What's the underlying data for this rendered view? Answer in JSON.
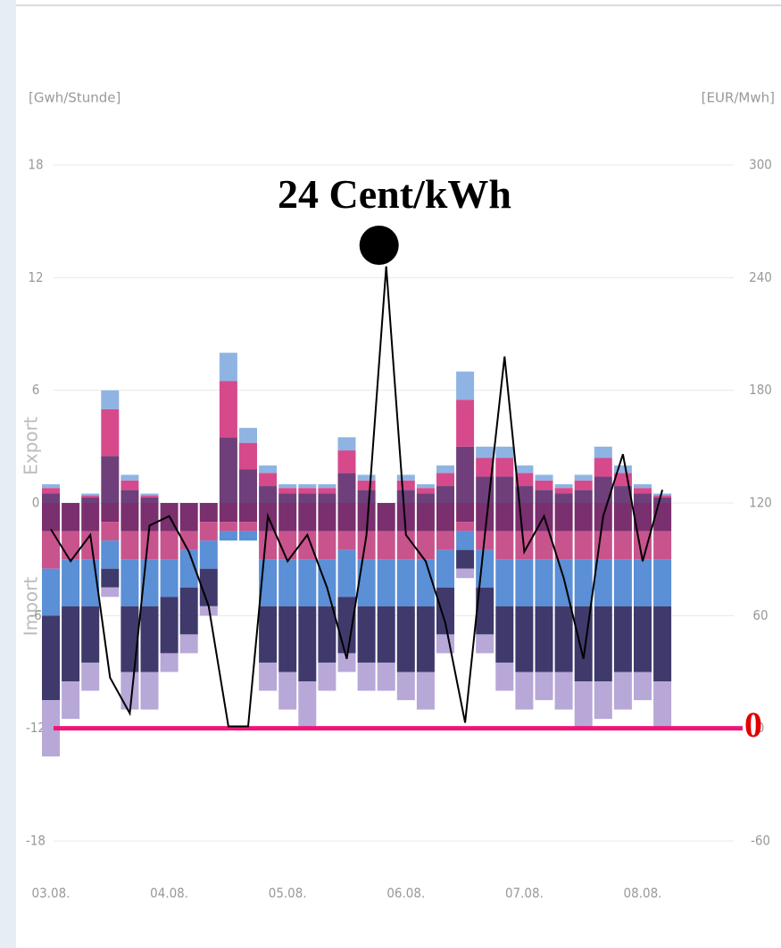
{
  "chart_data": {
    "type": "bar",
    "y_label": "[Gwh/Stunde]",
    "y2_label": "[EUR/Mwh]",
    "export_label": "Export",
    "import_label": "Import",
    "annotation": "24 Cent/kWh",
    "zero_line": {
      "axis": "y2",
      "value": 0,
      "label": "0",
      "color": "#f0147a"
    },
    "categories": [
      "03.08.",
      null,
      null,
      null,
      null,
      null,
      "04.08.",
      null,
      null,
      null,
      null,
      null,
      "05.08.",
      null,
      null,
      null,
      null,
      null,
      "06.08.",
      null,
      null,
      null,
      null,
      null,
      "07.08.",
      null,
      null,
      null,
      null,
      null,
      "08.08.",
      null
    ],
    "ylim": [
      -18,
      18
    ],
    "yticks": [
      -18,
      -12,
      -6,
      0,
      6,
      12,
      18
    ],
    "y2lim": [
      -60,
      300
    ],
    "y2ticks": [
      -60,
      0,
      60,
      120,
      180,
      240,
      300
    ],
    "grid": true,
    "series": [
      {
        "color": "#6e3f7a",
        "values": [
          0.5,
          0,
          0.3,
          2.5,
          0.7,
          0.3,
          0,
          0,
          0,
          3.5,
          1.8,
          0.9,
          0.5,
          0.5,
          0.5,
          1.6,
          0.7,
          0,
          0.7,
          0.5,
          0.9,
          3,
          1.4,
          1.4,
          0.9,
          0.7,
          0.5,
          0.7,
          1.4,
          0.9,
          0.5,
          0.3
        ]
      },
      {
        "color": "#d64a8c",
        "values": [
          0.3,
          0,
          0.1,
          2.5,
          0.5,
          0.1,
          0,
          0,
          0,
          3,
          1.4,
          0.7,
          0.3,
          0.3,
          0.3,
          1.2,
          0.5,
          0,
          0.5,
          0.3,
          0.7,
          2.5,
          1,
          1,
          0.7,
          0.5,
          0.3,
          0.5,
          1,
          0.7,
          0.3,
          0.1
        ]
      },
      {
        "color": "#8fb4e3",
        "values": [
          0.2,
          0,
          0.1,
          1,
          0.3,
          0.1,
          0,
          0,
          0,
          1.5,
          0.8,
          0.4,
          0.2,
          0.2,
          0.2,
          0.7,
          0.3,
          0,
          0.3,
          0.2,
          0.4,
          1.5,
          0.6,
          0.6,
          0.4,
          0.3,
          0.2,
          0.3,
          0.6,
          0.4,
          0.2,
          0.1
        ]
      },
      {
        "color": "#7a2f6e",
        "values": [
          -1.5,
          -1.5,
          -1.5,
          -1,
          -1.5,
          -1.5,
          -1.5,
          -1.5,
          -1,
          -1,
          -1,
          -1.5,
          -1.5,
          -1.5,
          -1.5,
          -1.5,
          -1.5,
          -1.5,
          -1.5,
          -1.5,
          -1.5,
          -1,
          -1.5,
          -1.5,
          -1.5,
          -1.5,
          -1.5,
          -1.5,
          -1.5,
          -1.5,
          -1.5,
          -1.5
        ]
      },
      {
        "color": "#c8548e",
        "values": [
          -2,
          -1.5,
          -1.5,
          -1,
          -1.5,
          -1.5,
          -1.5,
          -1,
          -1,
          -0.5,
          -0.5,
          -1.5,
          -1.5,
          -1.5,
          -1.5,
          -1,
          -1.5,
          -1.5,
          -1.5,
          -1.5,
          -1,
          -0.5,
          -1,
          -1.5,
          -1.5,
          -1.5,
          -1.5,
          -1.5,
          -1.5,
          -1.5,
          -1.5,
          -1.5
        ]
      },
      {
        "color": "#5b8fd6",
        "values": [
          -2.5,
          -2.5,
          -2.5,
          -1.5,
          -2.5,
          -2.5,
          -2,
          -2,
          -1.5,
          -0.5,
          -0.5,
          -2.5,
          -2.5,
          -2.5,
          -2.5,
          -2.5,
          -2.5,
          -2.5,
          -2.5,
          -2.5,
          -2,
          -1,
          -2,
          -2.5,
          -2.5,
          -2.5,
          -2.5,
          -2.5,
          -2.5,
          -2.5,
          -2.5,
          -2.5
        ]
      },
      {
        "color": "#3f3a6b",
        "values": [
          -4.5,
          -4,
          -3,
          -1,
          -3.5,
          -3.5,
          -3,
          -2.5,
          -2,
          0,
          0,
          -3,
          -3.5,
          -4,
          -3,
          -3,
          -3,
          -3,
          -3.5,
          -3.5,
          -2.5,
          -1,
          -2.5,
          -3,
          -3.5,
          -3.5,
          -3.5,
          -4,
          -4,
          -3.5,
          -3.5,
          -4
        ]
      },
      {
        "color": "#b7a8d8",
        "values": [
          -3,
          -2,
          -1.5,
          -0.5,
          -2,
          -2,
          -1,
          -1,
          -0.5,
          0,
          0,
          -1.5,
          -2,
          -2.5,
          -1.5,
          -1,
          -1.5,
          -1.5,
          -1.5,
          -2,
          -1,
          -0.5,
          -1,
          -1.5,
          -2,
          -1.5,
          -2,
          -2.5,
          -2,
          -2,
          -1.5,
          -2.5
        ]
      },
      {
        "color": "#000000",
        "axis": "y2",
        "values": [
          106,
          89,
          103,
          27,
          8,
          108,
          113,
          94,
          65,
          1,
          1,
          113,
          89,
          103,
          75,
          37,
          103,
          246,
          103,
          89,
          56,
          3,
          103,
          198,
          94,
          113,
          80,
          37,
          113,
          146,
          89,
          127
        ]
      }
    ]
  }
}
